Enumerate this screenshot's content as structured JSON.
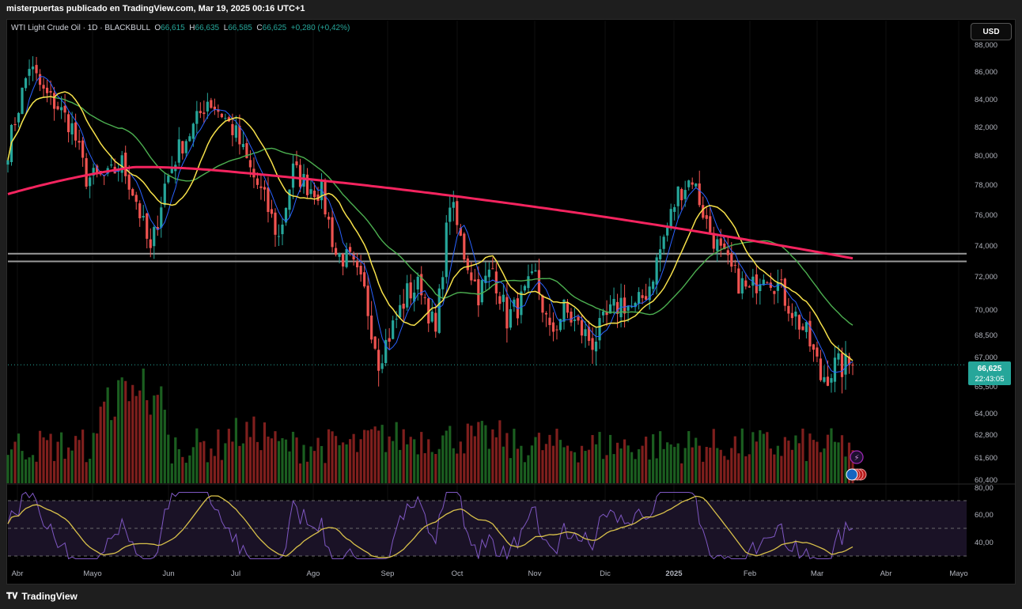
{
  "header": {
    "publisher": "misterpuertas publicado en TradingView.com, Mar 19, 2025 00:16 UTC+1"
  },
  "legend": {
    "symbol": "WTI Light Crude Oil · 1D · BLACKBULL",
    "o_label": "O",
    "o_value": "66,615",
    "h_label": "H",
    "h_value": "66,635",
    "l_label": "L",
    "l_value": "66,585",
    "c_label": "C",
    "c_value": "66,625",
    "change": "+0,280 (+0,42%)"
  },
  "currency_button": "USD",
  "footer": {
    "brand": "TradingView"
  },
  "colors": {
    "up": "#26a69a",
    "down": "#ef5350",
    "ma200": "#f5245f",
    "ma50": "#4caf50",
    "ma20": "#f7e14a",
    "ma10": "#2962ff",
    "rsi": "#7e57c2",
    "rsi_ma": "#d8c04a"
  },
  "chart_data": {
    "type": "candlestick",
    "x_ticks": [
      "Abr",
      "Mayo",
      "Jun",
      "Jul",
      "Ago",
      "Sep",
      "Oct",
      "Nov",
      "Dic",
      "2025",
      "Feb",
      "Mar",
      "Abr",
      "Mayo"
    ],
    "price_ticks": [
      "88,000",
      "86,000",
      "84,000",
      "82,000",
      "80,000",
      "78,000",
      "76,000",
      "74,000",
      "72,000",
      "70,000",
      "68,500",
      "67,000",
      "65,500",
      "64,000",
      "62,800",
      "61,600",
      "60,400"
    ],
    "rsi_ticks": [
      "80,00",
      "60,00",
      "40,00"
    ],
    "last_price": "66,625",
    "countdown": "22:43:05",
    "horizontal_levels": [
      73.5,
      73.0
    ],
    "rsi_levels": [
      70,
      50,
      30
    ],
    "series": [
      {
        "name": "Price",
        "type": "candlestick",
        "anchors": [
          [
            0,
            80.5
          ],
          [
            6,
            86.5
          ],
          [
            10,
            84.5
          ],
          [
            14,
            83.5
          ],
          [
            18,
            82.0
          ],
          [
            22,
            78.5
          ],
          [
            28,
            78.5
          ],
          [
            32,
            79.5
          ],
          [
            36,
            77.0
          ],
          [
            40,
            73.5
          ],
          [
            44,
            78.0
          ],
          [
            48,
            80.5
          ],
          [
            52,
            82.0
          ],
          [
            56,
            84.0
          ],
          [
            60,
            83.0
          ],
          [
            64,
            81.5
          ],
          [
            68,
            79.0
          ],
          [
            72,
            77.0
          ],
          [
            76,
            74.5
          ],
          [
            80,
            79.0
          ],
          [
            84,
            78.0
          ],
          [
            88,
            77.5
          ],
          [
            92,
            73.5
          ],
          [
            96,
            73.0
          ],
          [
            100,
            71.0
          ],
          [
            104,
            67.0
          ],
          [
            108,
            69.0
          ],
          [
            112,
            71.0
          ],
          [
            116,
            71.5
          ],
          [
            120,
            68.5
          ],
          [
            124,
            77.0
          ],
          [
            128,
            73.5
          ],
          [
            132,
            71.0
          ],
          [
            136,
            72.5
          ],
          [
            140,
            69.5
          ],
          [
            144,
            70.5
          ],
          [
            148,
            72.0
          ],
          [
            152,
            68.5
          ],
          [
            156,
            70.0
          ],
          [
            160,
            69.0
          ],
          [
            164,
            68.0
          ],
          [
            168,
            69.5
          ],
          [
            172,
            70.5
          ],
          [
            176,
            70.0
          ],
          [
            180,
            71.5
          ],
          [
            184,
            74.5
          ],
          [
            188,
            77.5
          ],
          [
            192,
            78.5
          ],
          [
            196,
            75.5
          ],
          [
            200,
            73.5
          ],
          [
            204,
            72.0
          ],
          [
            208,
            71.0
          ],
          [
            212,
            72.5
          ],
          [
            216,
            71.5
          ],
          [
            220,
            70.0
          ],
          [
            224,
            68.5
          ],
          [
            228,
            66.0
          ],
          [
            232,
            66.5
          ],
          [
            236,
            66.6
          ]
        ]
      },
      {
        "name": "MA 200"
      },
      {
        "name": "MA 50"
      },
      {
        "name": "MA 20"
      },
      {
        "name": "MA 10"
      },
      {
        "name": "RSI"
      },
      {
        "name": "RSI MA"
      }
    ]
  }
}
